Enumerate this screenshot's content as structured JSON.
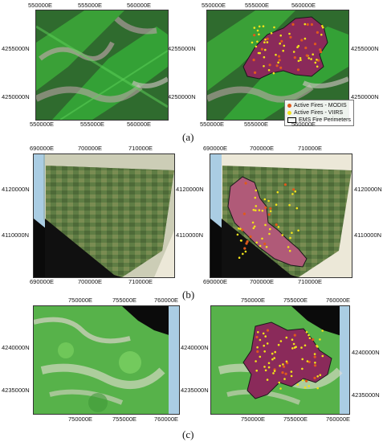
{
  "colors": {
    "modis": "#e05a1c",
    "viirs": "#f2e21a",
    "burn": "#8a2a5a",
    "veg_dark": "#2e6b2a",
    "veg_bright": "#3cc43a",
    "sea": "#aacde3",
    "land_map": "#ece8d8"
  },
  "legend": {
    "modis": "Active Fires - MODIS",
    "viirs": "Active Fires - VIIRS",
    "ems": "EMS Fire Perimeters"
  },
  "panels": [
    {
      "caption": "(a)",
      "x_ticks": [
        "550000E",
        "555000E",
        "560000E"
      ],
      "y_ticks": [
        "4255000N",
        "4250000N"
      ]
    },
    {
      "caption": "(b)",
      "x_ticks": [
        "690000E",
        "700000E",
        "710000E"
      ],
      "y_ticks": [
        "4120000N",
        "4110000N"
      ]
    },
    {
      "caption": "(c)",
      "x_ticks": [
        "750000E",
        "755000E",
        "760000E"
      ],
      "y_ticks": [
        "4240000N",
        "4235000N"
      ]
    }
  ]
}
